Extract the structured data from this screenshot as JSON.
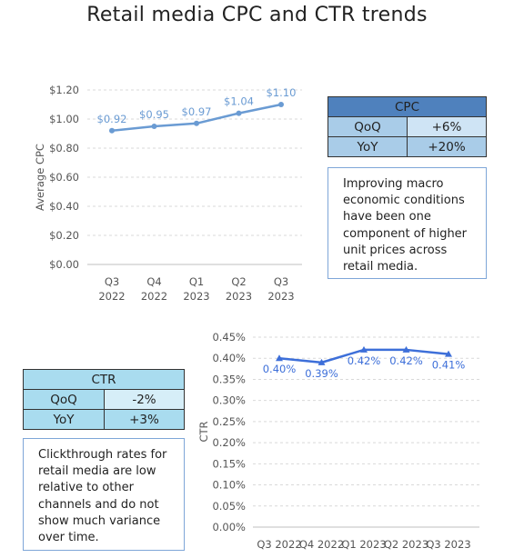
{
  "title": "Retail media CPC and CTR trends",
  "chart_data": [
    {
      "type": "line",
      "categories": [
        "Q3\n2022",
        "Q4\n2022",
        "Q1\n2023",
        "Q2\n2023",
        "Q3\n2023"
      ],
      "category_lines": [
        [
          "Q3",
          "2022"
        ],
        [
          "Q4",
          "2022"
        ],
        [
          "Q1",
          "2023"
        ],
        [
          "Q2",
          "2023"
        ],
        [
          "Q3",
          "2023"
        ]
      ],
      "values": [
        0.92,
        0.95,
        0.97,
        1.04,
        1.1
      ],
      "data_labels": [
        "$0.92",
        "$0.95",
        "$0.97",
        "$1.04",
        "$1.10"
      ],
      "ylabel": "Average CPC",
      "ylim": [
        0,
        1.2
      ],
      "yticks": [
        0,
        0.2,
        0.4,
        0.6,
        0.8,
        1.0,
        1.2
      ],
      "ytick_labels": [
        "$0.00",
        "$0.20",
        "$0.40",
        "$0.60",
        "$0.80",
        "$1.00",
        "$1.20"
      ],
      "grid": true,
      "color": "#6a9bd3"
    },
    {
      "type": "line",
      "categories": [
        "Q3 2022",
        "Q4 2022",
        "Q1 2023",
        "Q2 2023",
        "Q3 2023"
      ],
      "values": [
        0.4,
        0.39,
        0.42,
        0.42,
        0.41
      ],
      "data_labels": [
        "0.40%",
        "0.39%",
        "0.42%",
        "0.42%",
        "0.41%"
      ],
      "ylabel": "CTR",
      "ylim": [
        0,
        0.45
      ],
      "yticks": [
        0,
        0.05,
        0.1,
        0.15,
        0.2,
        0.25,
        0.3,
        0.35,
        0.4,
        0.45
      ],
      "ytick_labels": [
        "0.00%",
        "0.05%",
        "0.10%",
        "0.15%",
        "0.20%",
        "0.25%",
        "0.30%",
        "0.35%",
        "0.40%",
        "0.45%"
      ],
      "grid": true,
      "color": "#3d6fd9"
    }
  ],
  "cpc_table": {
    "header": "CPC",
    "rows": [
      {
        "label": "QoQ",
        "value": "+6%"
      },
      {
        "label": "YoY",
        "value": "+20%"
      }
    ]
  },
  "cpc_note": "Improving macro economic conditions have been one component of higher unit prices across retail media.",
  "ctr_table": {
    "header": "CTR",
    "rows": [
      {
        "label": "QoQ",
        "value": "-2%"
      },
      {
        "label": "YoY",
        "value": "+3%"
      }
    ]
  },
  "ctr_note": "Clickthrough rates for retail media are low relative to other channels and do not show much variance over time."
}
